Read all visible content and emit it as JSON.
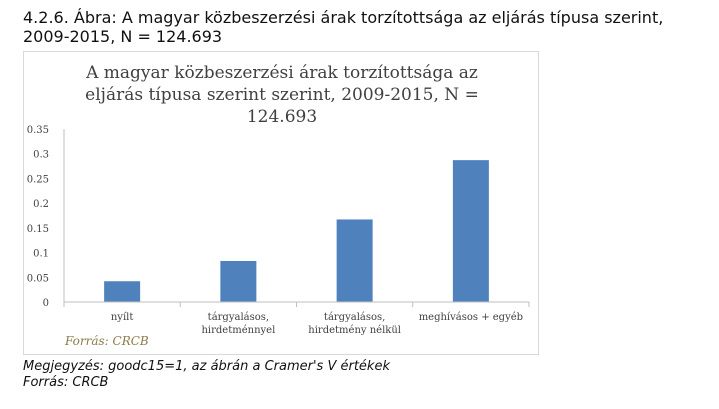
{
  "figure": {
    "caption": "4.2.6. Ábra: A magyar közbeszerzési árak torzítottsága az eljárás típusa szerint, 2009-2015, N = 124.693",
    "note": "Megjegyzés: goodc15=1, az ábrán a Cramer's V értékek",
    "source": "Forrás: CRCB"
  },
  "chart_data": {
    "type": "bar",
    "title_lines": [
      "A magyar közbeszerzési árak torzítottsága az",
      "eljárás típusa szerint szerint, 2009-2015, N =",
      "124.693"
    ],
    "categories": [
      [
        "nyílt"
      ],
      [
        "tárgyalásos,",
        "hirdetménnyel"
      ],
      [
        "tárgyalásos,",
        "hirdetmény nélkül"
      ],
      [
        "meghívásos + egyéb"
      ]
    ],
    "values": [
      0.042,
      0.083,
      0.167,
      0.287
    ],
    "yticks": [
      "0",
      "0.05",
      "0.1",
      "0.15",
      "0.2",
      "0.25",
      "0.3",
      "0.35"
    ],
    "ylim": [
      0,
      0.35
    ],
    "bar_color": "#4f81bd",
    "inner_source": "Forrás: CRCB",
    "inner_source_color": "#8c7b4a",
    "grid": false
  }
}
